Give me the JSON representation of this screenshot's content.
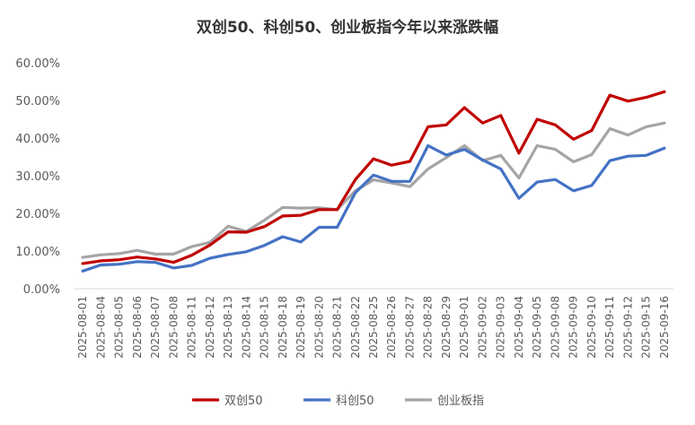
{
  "chart_data": {
    "type": "line",
    "title": "双创50、科创50、创业板指今年以来涨跌幅",
    "xlabel": "",
    "ylabel": "",
    "ylim": [
      0,
      60
    ],
    "yticks": [
      "0.00%",
      "10.00%",
      "20.00%",
      "30.00%",
      "40.00%",
      "50.00%",
      "60.00%"
    ],
    "grid": false,
    "legend_position": "bottom",
    "categories": [
      "2025-08-01",
      "2025-08-04",
      "2025-08-05",
      "2025-08-06",
      "2025-08-07",
      "2025-08-08",
      "2025-08-11",
      "2025-08-12",
      "2025-08-13",
      "2025-08-14",
      "2025-08-15",
      "2025-08-18",
      "2025-08-19",
      "2025-08-20",
      "2025-08-21",
      "2025-08-22",
      "2025-08-25",
      "2025-08-26",
      "2025-08-27",
      "2025-08-28",
      "2025-08-29",
      "2025-09-01",
      "2025-09-02",
      "2025-09-03",
      "2025-09-04",
      "2025-09-05",
      "2025-09-08",
      "2025-09-09",
      "2025-09-10",
      "2025-09-11",
      "2025-09-12",
      "2025-09-15",
      "2025-09-16"
    ],
    "series": [
      {
        "name": "双创50",
        "color": "#c00000",
        "values": [
          6.7,
          7.4,
          7.7,
          8.4,
          7.9,
          7.0,
          8.9,
          11.6,
          15.1,
          15.0,
          16.5,
          19.3,
          19.5,
          21.0,
          21.0,
          29.0,
          34.5,
          32.8,
          33.8,
          43.0,
          43.5,
          48.1,
          44.0,
          46.0,
          36.0,
          45.0,
          43.5,
          39.7,
          42.0,
          51.4,
          49.8,
          50.8,
          52.3
        ]
      },
      {
        "name": "科创50",
        "color": "#4472c4",
        "values": [
          4.7,
          6.3,
          6.5,
          7.2,
          7.0,
          5.5,
          6.2,
          8.1,
          9.1,
          9.8,
          11.5,
          13.8,
          12.4,
          16.3,
          16.3,
          25.5,
          30.2,
          28.5,
          28.5,
          38.0,
          35.5,
          37.0,
          34.2,
          31.8,
          24.0,
          28.3,
          29.0,
          26.0,
          27.4,
          34.0,
          35.2,
          35.4,
          37.3
        ]
      },
      {
        "name": "创业板指",
        "color": "#a5a5a5",
        "values": [
          8.3,
          9.0,
          9.3,
          10.2,
          9.2,
          9.2,
          11.2,
          12.3,
          16.6,
          15.2,
          18.2,
          21.6,
          21.4,
          21.5,
          21.0,
          26.0,
          28.9,
          28.1,
          27.1,
          31.8,
          34.8,
          38.0,
          34.0,
          35.4,
          29.4,
          38.0,
          37.0,
          33.7,
          35.6,
          42.5,
          40.8,
          43.0,
          44.0
        ]
      }
    ]
  }
}
